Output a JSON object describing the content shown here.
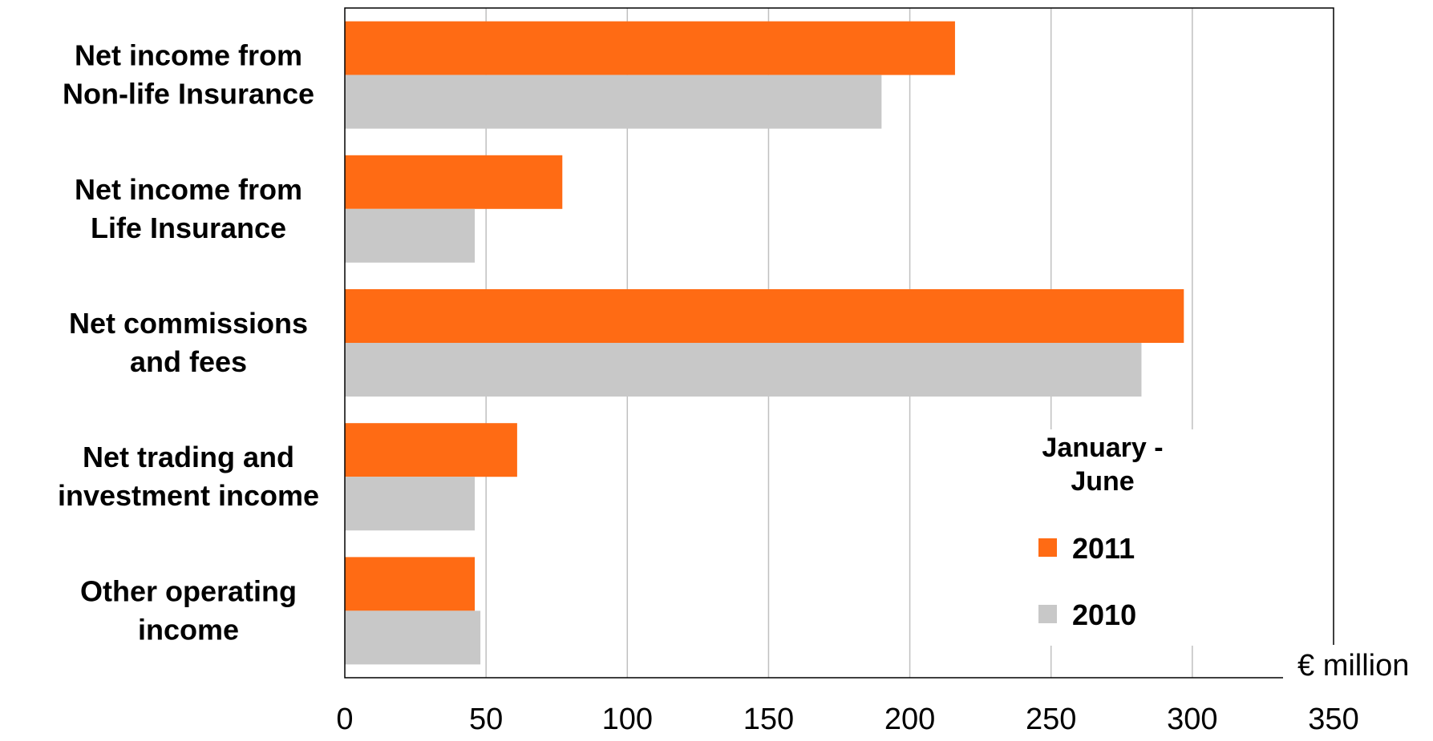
{
  "chart_data": {
    "type": "bar",
    "orientation": "horizontal",
    "categories": [
      [
        "Net income from",
        "Non-life Insurance"
      ],
      [
        "Net income from",
        "Life Insurance"
      ],
      [
        "Net commissions",
        "and fees"
      ],
      [
        "Net trading and",
        "investment income"
      ],
      [
        "Other operating",
        "income"
      ]
    ],
    "series": [
      {
        "name": "2011",
        "color": "#ff6b14",
        "values": [
          216,
          77,
          297,
          61,
          46
        ]
      },
      {
        "name": "2010",
        "color": "#c8c8c8",
        "values": [
          190,
          46,
          282,
          46,
          48
        ]
      }
    ],
    "xlim": [
      0,
      350
    ],
    "xticks": [
      "0",
      "50",
      "100",
      "150",
      "200",
      "250",
      "300",
      "350"
    ],
    "xticks_values": [
      0,
      50,
      100,
      150,
      200,
      250,
      300,
      350
    ],
    "unit_label": "€ million",
    "legend": {
      "title": [
        "January -",
        "June"
      ],
      "placement": "bottom-right"
    },
    "grid": true,
    "title": "",
    "xlabel": "",
    "ylabel": ""
  }
}
